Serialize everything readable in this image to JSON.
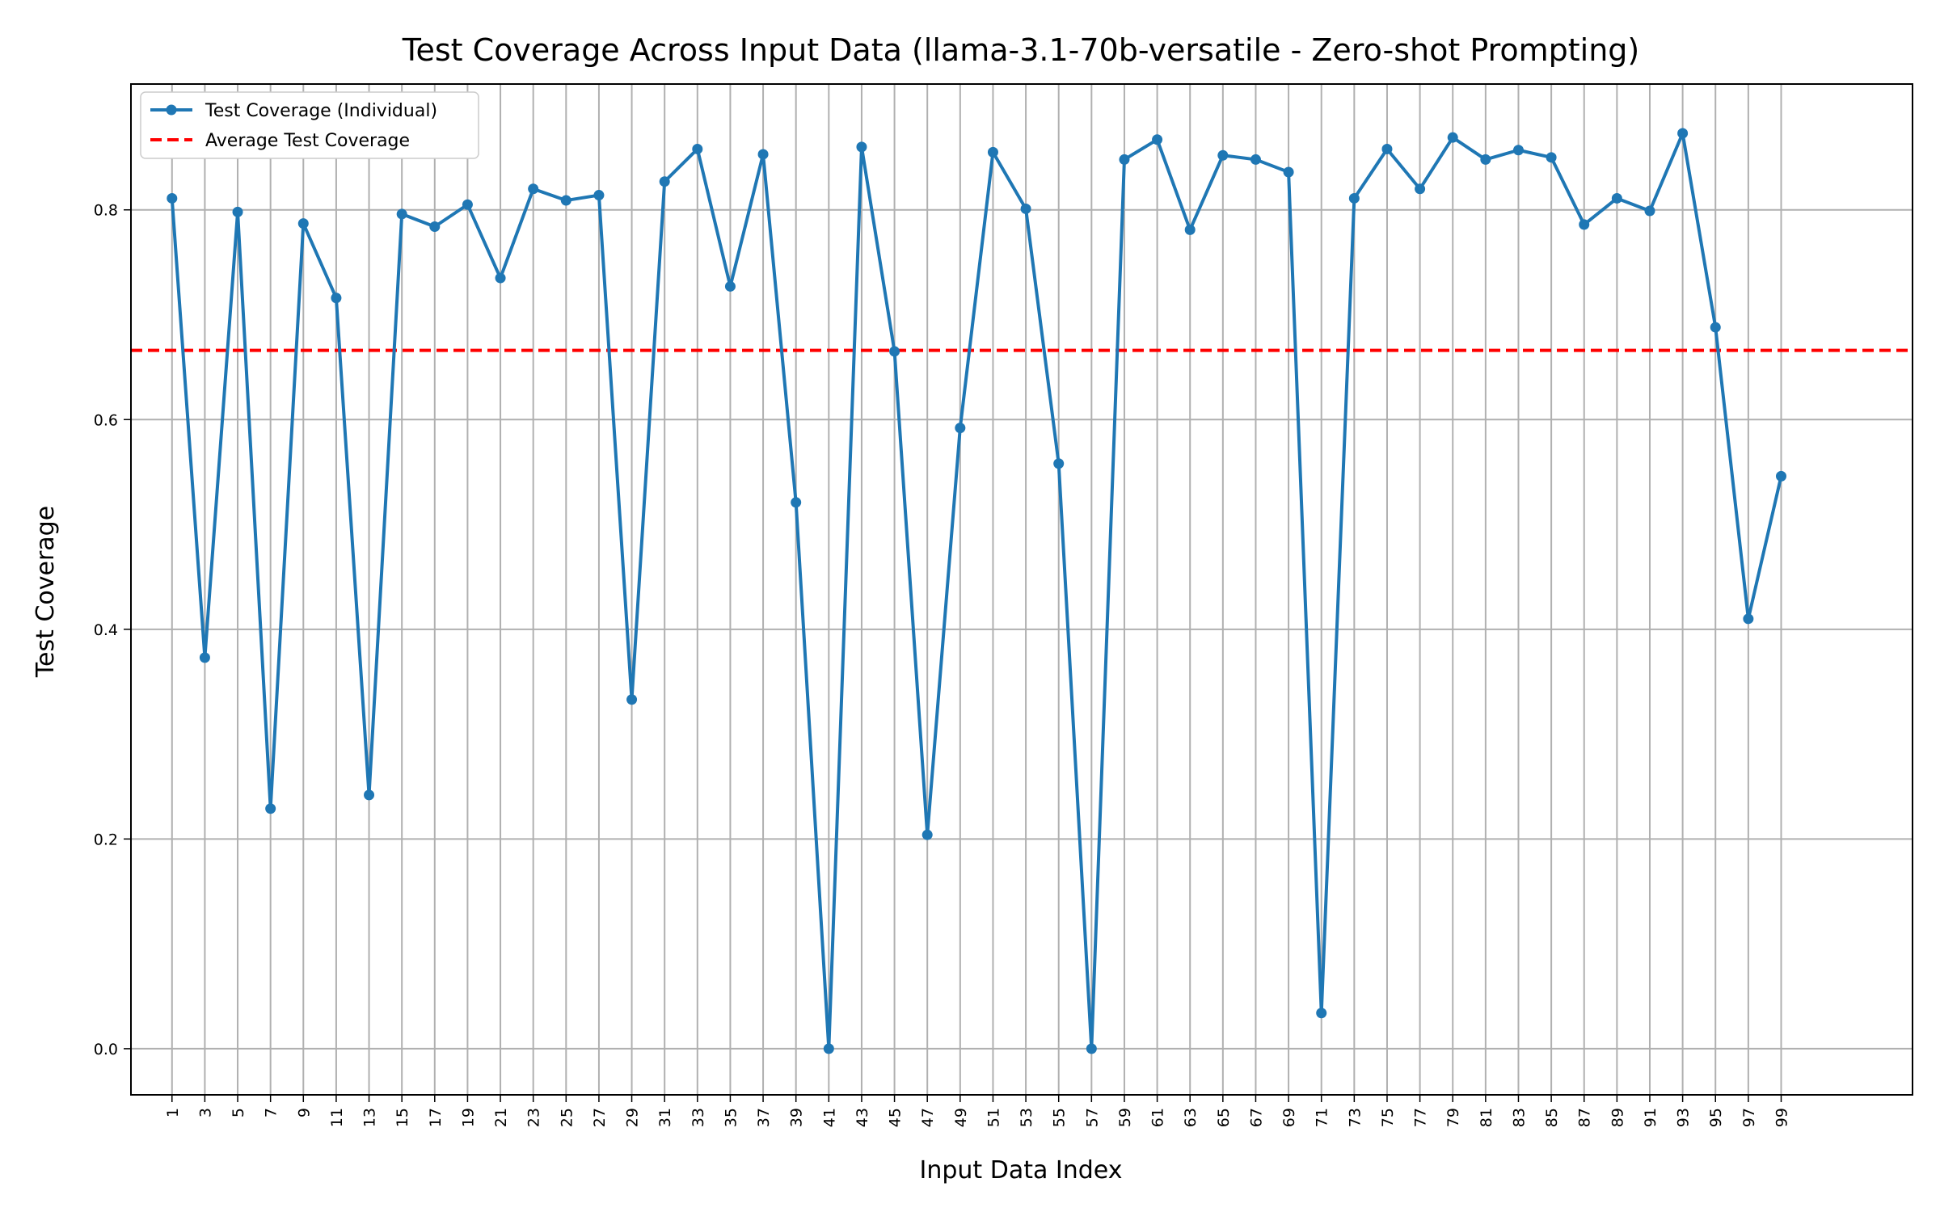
{
  "chart_data": {
    "type": "line",
    "title": "Test Coverage Across Input Data (llama-3.1-70b-versatile - Zero-shot Prompting)",
    "xlabel": "Input Data Index",
    "ylabel": "Test Coverage",
    "xlim": [
      -1.5,
      107
    ],
    "ylim": [
      -0.044,
      0.92
    ],
    "x_ticks": [
      1,
      3,
      5,
      7,
      9,
      11,
      13,
      15,
      17,
      19,
      21,
      23,
      25,
      27,
      29,
      31,
      33,
      35,
      37,
      39,
      41,
      43,
      45,
      47,
      49,
      51,
      53,
      55,
      57,
      59,
      61,
      63,
      65,
      67,
      69,
      71,
      73,
      75,
      77,
      79,
      81,
      83,
      85,
      87,
      89,
      91,
      93,
      95,
      97,
      99
    ],
    "y_ticks": [
      0.0,
      0.2,
      0.4,
      0.6,
      0.8
    ],
    "y_tick_labels": [
      "0.0",
      "0.2",
      "0.4",
      "0.6",
      "0.8"
    ],
    "grid": true,
    "legend_position": "top-left",
    "series": [
      {
        "name": "Test Coverage (Individual)",
        "color": "#1f77b4",
        "style": "solid-with-markers",
        "x": [
          1,
          3,
          5,
          7,
          9,
          11,
          13,
          15,
          17,
          19,
          21,
          23,
          25,
          27,
          29,
          31,
          33,
          35,
          37,
          39,
          41,
          43,
          45,
          47,
          49,
          51,
          53,
          55,
          57,
          59,
          61,
          63,
          65,
          67,
          69,
          71,
          73,
          75,
          77,
          79,
          81,
          83,
          85,
          87,
          89,
          91,
          93,
          95,
          97,
          99
        ],
        "y": [
          0.811,
          0.373,
          0.798,
          0.229,
          0.787,
          0.716,
          0.242,
          0.796,
          0.784,
          0.805,
          0.735,
          0.82,
          0.809,
          0.814,
          0.333,
          0.827,
          0.858,
          0.727,
          0.853,
          0.521,
          0.0,
          0.86,
          0.665,
          0.204,
          0.592,
          0.855,
          0.801,
          0.558,
          0.0,
          0.848,
          0.867,
          0.781,
          0.852,
          0.848,
          0.836,
          0.034,
          0.811,
          0.858,
          0.82,
          0.869,
          0.848,
          0.857,
          0.85,
          0.786,
          0.811,
          0.799,
          0.873,
          0.688,
          0.41,
          0.546
        ]
      },
      {
        "name": "Average Test Coverage",
        "color": "#ff0000",
        "style": "dashed",
        "constant": 0.666
      }
    ]
  }
}
